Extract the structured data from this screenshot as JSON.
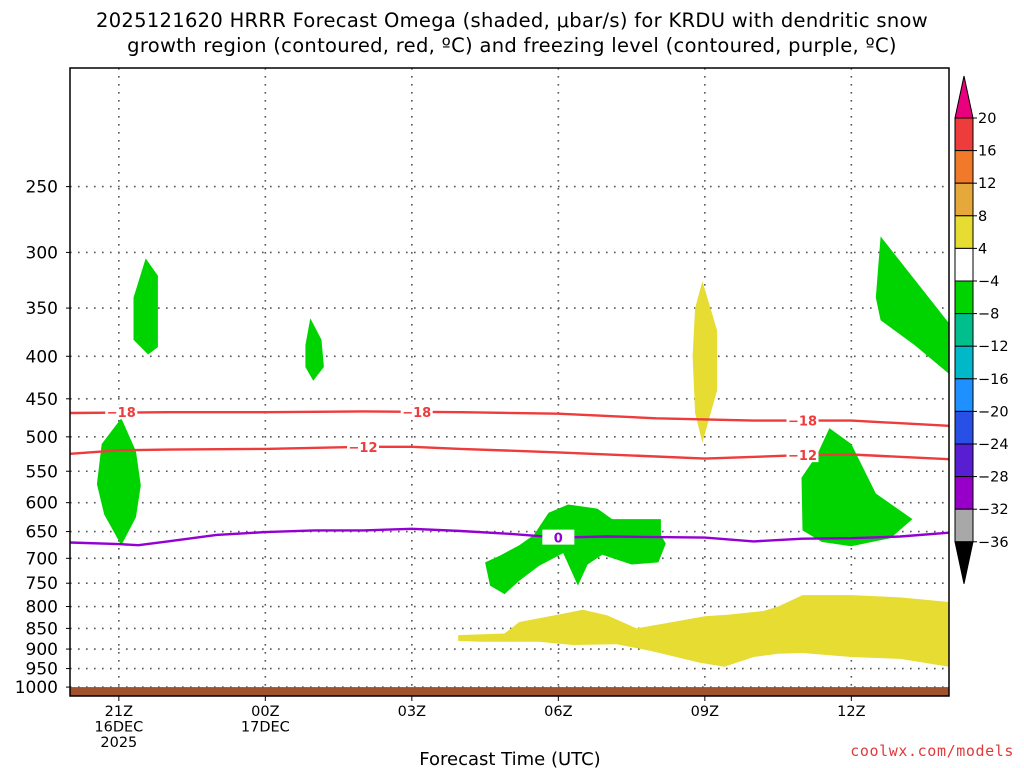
{
  "title": {
    "line1": "2025121620 HRRR Forecast Omega (shaded, μbar/s) for KRDU with dendritic snow",
    "line2": "growth region (contoured, red, ºC) and freezing level (contoured, purple, ºC)"
  },
  "watermark": "coolwx.com/models",
  "colors": {
    "grid": "#555555",
    "ground": "#a0522d",
    "dendritic_contour": "#ee3b3b",
    "freezing_contour": "#9400d3",
    "green_fill": "#00d400",
    "yellow_fill": "#e6dc32"
  },
  "chart_data": {
    "type": "contour",
    "xlabel": "Forecast Time (UTC)",
    "ylabel": "",
    "x_unit": "forecast hour (0 = 2025-12-16 20Z)",
    "xlim": [
      0,
      18
    ],
    "ylim": [
      1025,
      180
    ],
    "y_scale": "log-pressure",
    "grid": true,
    "x_ticks": [
      {
        "hour": 1,
        "label": [
          "21Z",
          "16DEC",
          "2025"
        ]
      },
      {
        "hour": 4,
        "label": [
          "00Z",
          "17DEC"
        ]
      },
      {
        "hour": 7,
        "label": [
          "03Z"
        ]
      },
      {
        "hour": 10,
        "label": [
          "06Z"
        ]
      },
      {
        "hour": 13,
        "label": [
          "09Z"
        ]
      },
      {
        "hour": 16,
        "label": [
          "12Z"
        ]
      }
    ],
    "y_ticks": [
      250,
      300,
      350,
      400,
      450,
      500,
      550,
      600,
      650,
      700,
      750,
      800,
      850,
      900,
      950,
      1000
    ],
    "ground_level_hpa": 1000,
    "colorbar": {
      "labels": [
        "20",
        "16",
        "12",
        "8",
        "4",
        "−4",
        "−8",
        "−12",
        "−16",
        "−20",
        "−24",
        "−28",
        "−32",
        "−36"
      ],
      "colors": [
        "#e8007d",
        "#ee3b3b",
        "#f07a2a",
        "#e6a83a",
        "#e6dc32",
        "#ffffff",
        "#00d400",
        "#00bf8c",
        "#00b8c8",
        "#1e90ff",
        "#2850e6",
        "#5a1ed2",
        "#9600c8",
        "#a8a8a8",
        "#000000"
      ]
    },
    "contours": [
      {
        "level": "−18",
        "color": "#ee3b3b",
        "points": [
          [
            0,
            468
          ],
          [
            2,
            467
          ],
          [
            4,
            467
          ],
          [
            6,
            466
          ],
          [
            8,
            467
          ],
          [
            10,
            469
          ],
          [
            12,
            475
          ],
          [
            14,
            478
          ],
          [
            16,
            478
          ],
          [
            18,
            485
          ]
        ],
        "labels": [
          {
            "hour": 1.05,
            "hpa": 467,
            "text": "−18"
          },
          {
            "hour": 7.1,
            "hpa": 467,
            "text": "−18"
          },
          {
            "hour": 15.0,
            "hpa": 478,
            "text": "−18"
          }
        ]
      },
      {
        "level": "−12",
        "color": "#ee3b3b",
        "points": [
          [
            0,
            524
          ],
          [
            1,
            519
          ],
          [
            2,
            518
          ],
          [
            4,
            517
          ],
          [
            6,
            514
          ],
          [
            7,
            514
          ],
          [
            8,
            517
          ],
          [
            10,
            522
          ],
          [
            12,
            528
          ],
          [
            13,
            531
          ],
          [
            15,
            526
          ],
          [
            16,
            525
          ],
          [
            18,
            532
          ]
        ],
        "labels": [
          {
            "hour": 6.0,
            "hpa": 514,
            "text": "−12"
          },
          {
            "hour": 15.0,
            "hpa": 526,
            "text": "−12"
          }
        ]
      },
      {
        "level": "0",
        "color": "#9400d3",
        "points": [
          [
            0,
            670
          ],
          [
            1,
            673
          ],
          [
            1.4,
            675
          ],
          [
            2,
            668
          ],
          [
            3,
            656
          ],
          [
            4,
            651
          ],
          [
            5,
            648
          ],
          [
            6,
            648
          ],
          [
            7,
            645
          ],
          [
            8,
            649
          ],
          [
            9,
            654
          ],
          [
            10,
            661
          ],
          [
            11,
            659
          ],
          [
            12,
            660
          ],
          [
            13,
            661
          ],
          [
            14,
            668
          ],
          [
            15,
            663
          ],
          [
            16,
            662
          ],
          [
            17,
            659
          ],
          [
            18,
            652
          ]
        ],
        "labels": [
          {
            "hour": 10.0,
            "hpa": 661,
            "text": "0"
          }
        ]
      }
    ],
    "shaded": [
      {
        "value_range": "-8 to -4",
        "color": "#00d400",
        "polygon": [
          [
            1.55,
            305
          ],
          [
            1.8,
            320
          ],
          [
            1.8,
            390
          ],
          [
            1.6,
            398
          ],
          [
            1.3,
            382
          ],
          [
            1.3,
            340
          ]
        ]
      },
      {
        "value_range": "-8 to -4",
        "color": "#00d400",
        "polygon": [
          [
            4.92,
            360
          ],
          [
            5.15,
            382
          ],
          [
            5.2,
            412
          ],
          [
            4.98,
            428
          ],
          [
            4.82,
            412
          ],
          [
            4.82,
            388
          ]
        ]
      },
      {
        "value_range": "-8 to -4",
        "color": "#00d400",
        "polygon": [
          [
            1.05,
            475
          ],
          [
            1.35,
            520
          ],
          [
            1.45,
            572
          ],
          [
            1.35,
            625
          ],
          [
            1.05,
            675
          ],
          [
            0.7,
            620
          ],
          [
            0.55,
            570
          ],
          [
            0.65,
            510
          ]
        ]
      },
      {
        "value_range": "-8 to -4",
        "color": "#00d400",
        "polygon": [
          [
            8.5,
            708
          ],
          [
            8.8,
            695
          ],
          [
            9.2,
            675
          ],
          [
            9.5,
            656
          ],
          [
            9.8,
            617
          ],
          [
            10.2,
            603
          ],
          [
            10.8,
            610
          ],
          [
            11.1,
            628
          ],
          [
            12.1,
            628
          ],
          [
            12.1,
            656
          ],
          [
            12.2,
            672
          ],
          [
            12.05,
            708
          ],
          [
            11.5,
            712
          ],
          [
            10.9,
            693
          ],
          [
            10.6,
            712
          ],
          [
            10.4,
            755
          ],
          [
            10.1,
            690
          ],
          [
            9.6,
            715
          ],
          [
            9.2,
            745
          ],
          [
            8.9,
            773
          ],
          [
            8.6,
            755
          ]
        ]
      },
      {
        "value_range": "-8 to -4",
        "color": "#00d400",
        "polygon": [
          [
            15.55,
            488
          ],
          [
            16.0,
            510
          ],
          [
            16.5,
            585
          ],
          [
            17.25,
            628
          ],
          [
            16.8,
            662
          ],
          [
            16.0,
            677
          ],
          [
            15.4,
            669
          ],
          [
            15.0,
            648
          ],
          [
            14.98,
            560
          ],
          [
            15.3,
            525
          ]
        ]
      },
      {
        "value_range": "-8 to -4",
        "color": "#00d400",
        "polygon": [
          [
            16.6,
            287
          ],
          [
            17.5,
            335
          ],
          [
            18.0,
            365
          ],
          [
            18.0,
            420
          ],
          [
            17.3,
            388
          ],
          [
            16.6,
            362
          ],
          [
            16.5,
            340
          ]
        ]
      },
      {
        "value_range": "4 to 8",
        "color": "#e6dc32",
        "polygon": [
          [
            12.95,
            325
          ],
          [
            13.25,
            372
          ],
          [
            13.25,
            440
          ],
          [
            12.95,
            508
          ],
          [
            12.8,
            468
          ],
          [
            12.75,
            400
          ],
          [
            12.8,
            350
          ]
        ]
      },
      {
        "value_range": "4 to 8",
        "color": "#e6dc32",
        "polygon": [
          [
            7.95,
            866
          ],
          [
            8.9,
            862
          ],
          [
            9.2,
            835
          ],
          [
            10.0,
            818
          ],
          [
            10.5,
            807
          ],
          [
            11.0,
            820
          ],
          [
            11.6,
            850
          ],
          [
            12.2,
            838
          ],
          [
            13.0,
            822
          ],
          [
            13.5,
            818
          ],
          [
            14.2,
            810
          ],
          [
            14.5,
            800
          ],
          [
            15.0,
            775
          ],
          [
            16.0,
            775
          ],
          [
            17.0,
            780
          ],
          [
            18.0,
            790
          ],
          [
            18.0,
            945
          ],
          [
            17.0,
            925
          ],
          [
            16.0,
            920
          ],
          [
            15.0,
            910
          ],
          [
            14.5,
            912
          ],
          [
            14.0,
            920
          ],
          [
            13.4,
            945
          ],
          [
            12.9,
            935
          ],
          [
            11.9,
            905
          ],
          [
            11.2,
            888
          ],
          [
            10.3,
            890
          ],
          [
            9.6,
            882
          ],
          [
            8.4,
            882
          ],
          [
            7.95,
            880
          ]
        ]
      }
    ]
  }
}
